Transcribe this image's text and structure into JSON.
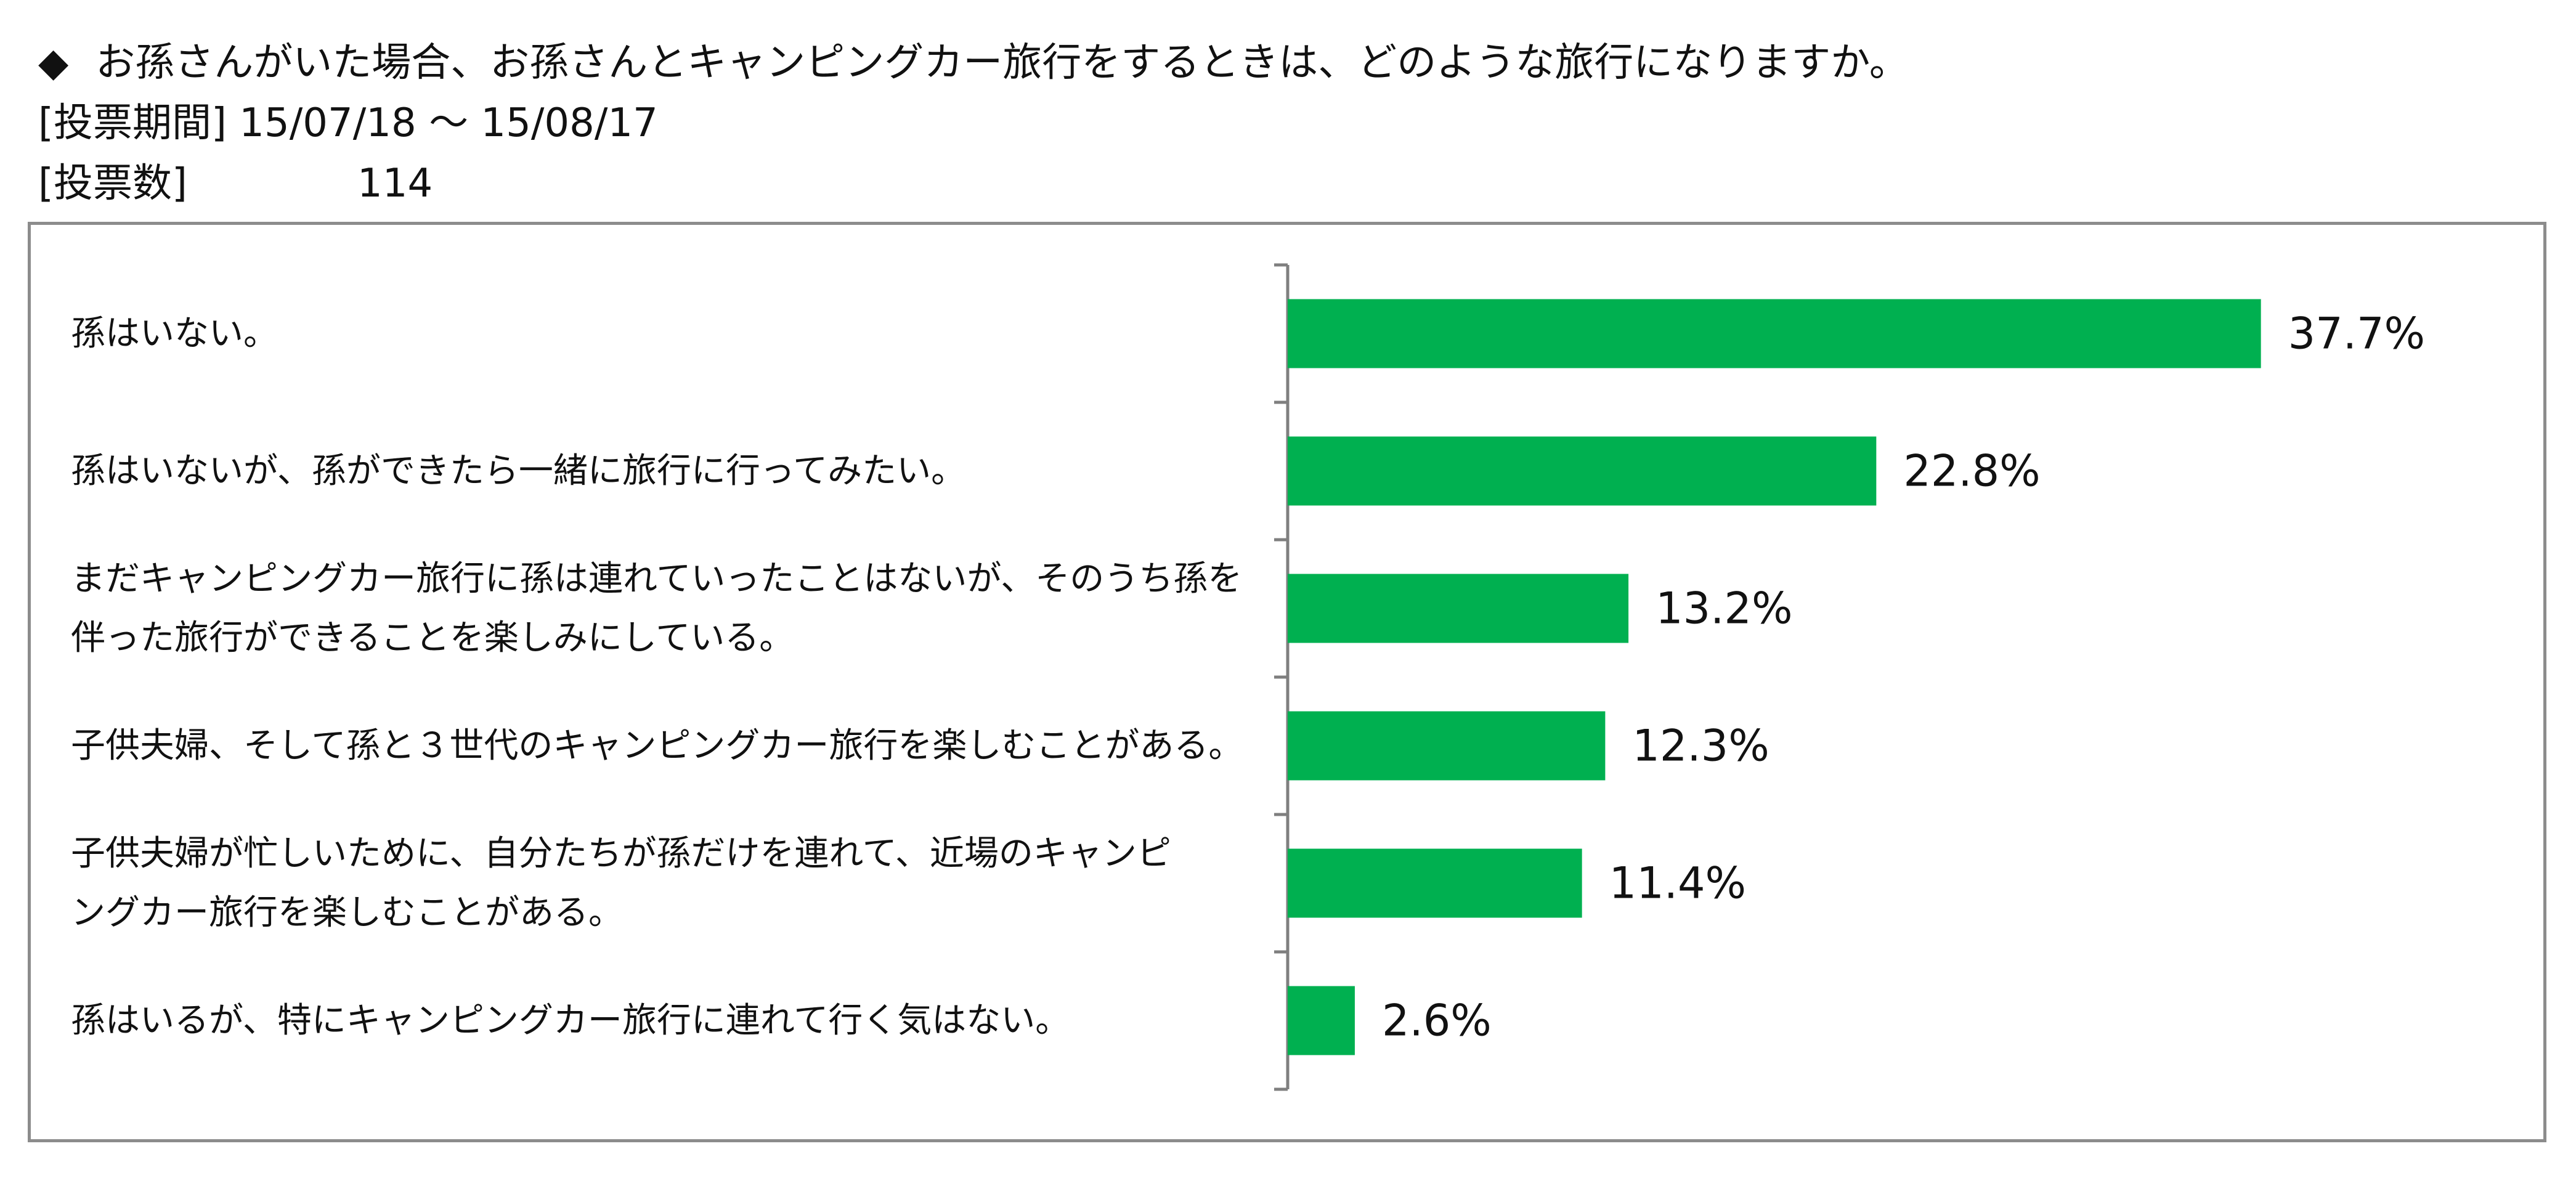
{
  "header": {
    "question_marker": "◆",
    "question": "お孫さんがいた場合、お孫さんとキャンピングカー旅行をするときは、どのような旅行になりますか。",
    "period_label": "[投票期間]",
    "period_value": "15/07/18 ～ 15/08/17",
    "votes_label": "[投票数]",
    "votes_value": "114"
  },
  "colors": {
    "bar": "#00b050",
    "axis": "#7f7f7f",
    "frame": "#8c8c8c"
  },
  "chart_data": {
    "type": "bar",
    "orientation": "horizontal",
    "categories": [
      [
        "孫はいない。"
      ],
      [
        "孫はいないが、孫ができたら一緒に旅行に行ってみたい。"
      ],
      [
        "まだキャンピングカー旅行に孫は連れていったことはないが、そのうち孫を",
        "伴った旅行ができることを楽しみにしている。"
      ],
      [
        "子供夫婦、そして孫と３世代のキャンピングカー旅行を楽しむことがある。"
      ],
      [
        "子供夫婦が忙しいために、自分たちが孫だけを連れて、近場のキャンピ",
        "ングカー旅行を楽しむことがある。"
      ],
      [
        "孫はいるが、特にキャンピングカー旅行に連れて行く気はない。"
      ]
    ],
    "values": [
      37.7,
      22.8,
      13.2,
      12.3,
      11.4,
      2.6
    ],
    "value_labels": [
      "37.7%",
      "22.8%",
      "13.2%",
      "12.3%",
      "11.4%",
      "2.6%"
    ],
    "xlim": [
      0,
      40
    ],
    "grid": false,
    "legend": "none"
  }
}
